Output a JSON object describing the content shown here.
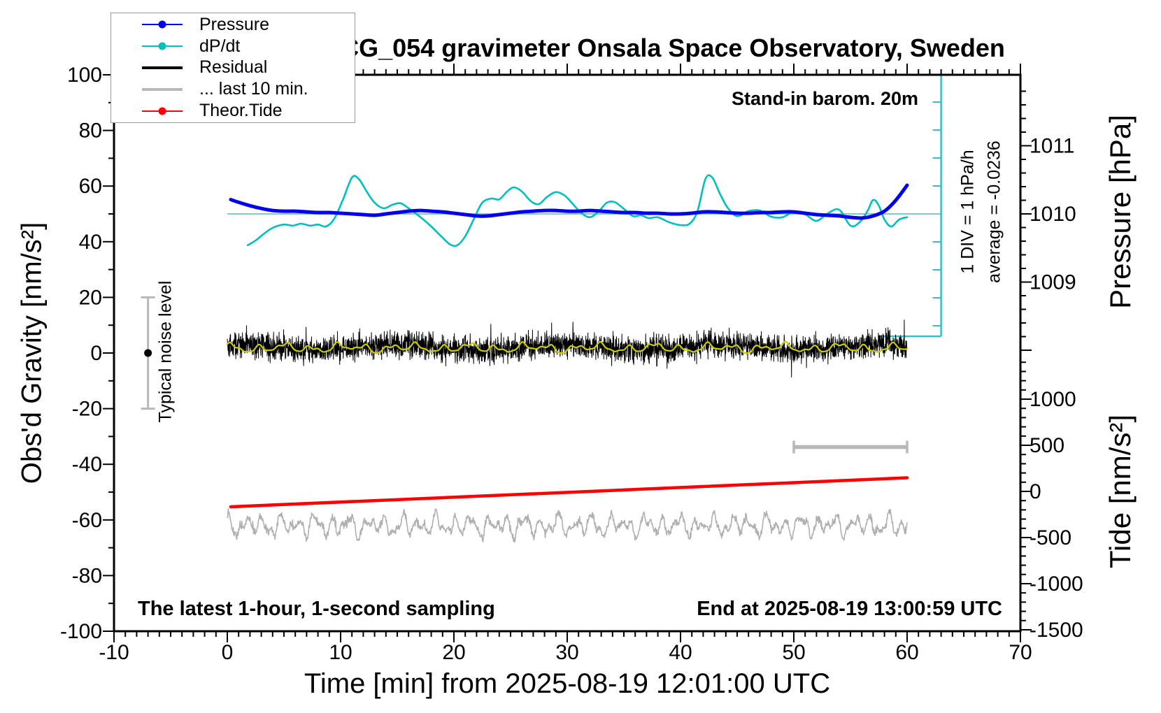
{
  "chart_data": {
    "type": "line",
    "title": "SCG_054 gravimeter Onsala Space Observatory, Sweden",
    "xlabel": "Time [min] from 2025-08-19 12:01:00 UTC",
    "x_axis": {
      "min": -10,
      "max": 70,
      "major": 10,
      "minor": 1
    },
    "y_left": {
      "label": "Obs'd Gravity [nm/s²]",
      "min": -100,
      "max": 100,
      "major": 20,
      "minor": 10
    },
    "y_right_pressure": {
      "label": "Pressure [hPa]",
      "ticks": [
        1011,
        1010,
        1009
      ],
      "minor_step": 0.2,
      "shown_range": [
        1008.0,
        1011.8
      ]
    },
    "y_right_tide": {
      "label": "Tide [nm/s²]",
      "ticks": [
        1000,
        500,
        0,
        -500,
        -1000,
        -1500
      ],
      "minor_step": 100,
      "shown_range": [
        -1500,
        1400
      ]
    },
    "axis_alignment": {
      "pressure_ref": 1010,
      "pressure_ref_g": 50,
      "g_per_hpa": 24.5,
      "g_per_hpa_rate": 10.05,
      "tide_zero_g": -49.75,
      "g_per_tide_unit": 0.03316
    },
    "annotations": {
      "barometer": "Stand-in barom. 20m",
      "div_scale": "1 DIV = 1 hPa/h",
      "average": "average = -0.0236",
      "noise_level": "Typical noise level",
      "sampling": "The latest 1-hour, 1-second sampling",
      "end_time": "End at 2025-08-19 13:00:59 UTC"
    },
    "legend": [
      {
        "label": "Pressure",
        "color": "#0000ee",
        "dot": true,
        "thick": false
      },
      {
        "label": "dP/dt",
        "color": "#00bfbf",
        "dot": true,
        "thick": false
      },
      {
        "label": "Residual",
        "color": "#000000",
        "dot": false,
        "thick": true
      },
      {
        "label": "... last 10 min.",
        "color": "#b8b8b8",
        "dot": false,
        "thick": true
      },
      {
        "label": "Theor.Tide",
        "color": "#ff0000",
        "dot": true,
        "thick": false
      }
    ],
    "colors": {
      "pressure": "#0000ee",
      "dpdt": "#00bfbf",
      "dpdt_zero_line": "#85c9c9",
      "div_bar": "#3cbcbc",
      "residual": "#000000",
      "residual_smooth": "#cccc00",
      "last10": "#b0b0b0",
      "tide": "#ff0000",
      "marker_gray": "#b8b8b8",
      "frame": "#000000"
    },
    "series": {
      "pressure_hpa": [
        [
          0.3,
          1010.21
        ],
        [
          1,
          1010.17
        ],
        [
          2,
          1010.12
        ],
        [
          3,
          1010.08
        ],
        [
          4,
          1010.05
        ],
        [
          5,
          1010.04
        ],
        [
          6,
          1010.04
        ],
        [
          7,
          1010.03
        ],
        [
          8,
          1010.02
        ],
        [
          9,
          1010.02
        ],
        [
          10,
          1010.01
        ],
        [
          11,
          1010.0
        ],
        [
          12,
          1009.99
        ],
        [
          13,
          1009.98
        ],
        [
          14,
          1010.0
        ],
        [
          15,
          1010.02
        ],
        [
          16,
          1010.04
        ],
        [
          17,
          1010.05
        ],
        [
          18,
          1010.04
        ],
        [
          19,
          1010.03
        ],
        [
          20,
          1010.01
        ],
        [
          21,
          1009.99
        ],
        [
          22,
          1009.97
        ],
        [
          23,
          1009.97
        ],
        [
          24,
          1009.99
        ],
        [
          25,
          1010.01
        ],
        [
          26,
          1010.03
        ],
        [
          27,
          1010.04
        ],
        [
          28,
          1010.05
        ],
        [
          29,
          1010.05
        ],
        [
          30,
          1010.04
        ],
        [
          31,
          1010.04
        ],
        [
          32,
          1010.05
        ],
        [
          33,
          1010.04
        ],
        [
          34,
          1010.03
        ],
        [
          35,
          1010.02
        ],
        [
          36,
          1010.02
        ],
        [
          37,
          1010.01
        ],
        [
          38,
          1010.01
        ],
        [
          39,
          1010.0
        ],
        [
          40,
          1010.0
        ],
        [
          41,
          1010.01
        ],
        [
          42,
          1010.03
        ],
        [
          43,
          1010.03
        ],
        [
          44,
          1010.02
        ],
        [
          45,
          1010.01
        ],
        [
          46,
          1010.01
        ],
        [
          47,
          1010.02
        ],
        [
          48,
          1010.02
        ],
        [
          49,
          1010.03
        ],
        [
          50,
          1010.03
        ],
        [
          51,
          1010.01
        ],
        [
          52,
          1009.99
        ],
        [
          53,
          1009.98
        ],
        [
          54,
          1009.97
        ],
        [
          55,
          1009.95
        ],
        [
          56,
          1009.94
        ],
        [
          57,
          1009.97
        ],
        [
          58,
          1010.04
        ],
        [
          59,
          1010.2
        ],
        [
          60,
          1010.42
        ]
      ],
      "dpdt_hpa_per_h": [
        [
          1.8,
          -1.12
        ],
        [
          2.5,
          -0.95
        ],
        [
          3.2,
          -0.72
        ],
        [
          4,
          -0.5
        ],
        [
          5,
          -0.38
        ],
        [
          5.8,
          -0.42
        ],
        [
          6.5,
          -0.35
        ],
        [
          7.3,
          -0.42
        ],
        [
          8,
          -0.38
        ],
        [
          8.7,
          -0.45
        ],
        [
          9.4,
          -0.2
        ],
        [
          10.2,
          0.5
        ],
        [
          11,
          1.3
        ],
        [
          11.6,
          1.25
        ],
        [
          12.3,
          0.8
        ],
        [
          13,
          0.4
        ],
        [
          13.8,
          0.2
        ],
        [
          14.6,
          0.33
        ],
        [
          15.3,
          0.38
        ],
        [
          16,
          0.2
        ],
        [
          17,
          -0.1
        ],
        [
          18,
          -0.45
        ],
        [
          19,
          -0.85
        ],
        [
          19.7,
          -1.1
        ],
        [
          20.3,
          -1.12
        ],
        [
          21,
          -0.8
        ],
        [
          21.8,
          -0.15
        ],
        [
          22.5,
          0.4
        ],
        [
          23.3,
          0.55
        ],
        [
          24,
          0.52
        ],
        [
          24.7,
          0.8
        ],
        [
          25.3,
          0.95
        ],
        [
          26,
          0.8
        ],
        [
          26.8,
          0.45
        ],
        [
          27.5,
          0.35
        ],
        [
          28.2,
          0.6
        ],
        [
          29,
          0.78
        ],
        [
          29.8,
          0.65
        ],
        [
          30.5,
          0.35
        ],
        [
          31.2,
          0.05
        ],
        [
          32,
          -0.12
        ],
        [
          32.8,
          0.1
        ],
        [
          33.5,
          0.4
        ],
        [
          34.2,
          0.42
        ],
        [
          35,
          0.18
        ],
        [
          35.8,
          -0.08
        ],
        [
          36.5,
          -0.05
        ],
        [
          37.2,
          -0.15
        ],
        [
          38,
          -0.12
        ],
        [
          39,
          -0.3
        ],
        [
          40,
          -0.4
        ],
        [
          40.8,
          -0.35
        ],
        [
          41.5,
          0.1
        ],
        [
          42.2,
          1.25
        ],
        [
          42.8,
          1.3
        ],
        [
          43.5,
          0.7
        ],
        [
          44.2,
          0.2
        ],
        [
          45,
          -0.08
        ],
        [
          46,
          0.1
        ],
        [
          47,
          0.12
        ],
        [
          48,
          -0.1
        ],
        [
          49,
          -0.12
        ],
        [
          50,
          0.08
        ],
        [
          51,
          -0.02
        ],
        [
          52,
          -0.25
        ],
        [
          53,
          0.02
        ],
        [
          54,
          0.15
        ],
        [
          55,
          -0.42
        ],
        [
          55.8,
          -0.3
        ],
        [
          56.5,
          0.1
        ],
        [
          57,
          0.5
        ],
        [
          57.5,
          0.3
        ],
        [
          58,
          -0.2
        ],
        [
          58.6,
          -0.45
        ],
        [
          59.3,
          -0.2
        ],
        [
          60,
          -0.12
        ]
      ],
      "theor_tide_nms2": [
        [
          0.3,
          -167
        ],
        [
          60,
          148
        ]
      ],
      "residual": {
        "procedural": true,
        "units": "nm/s2 gravity",
        "mean": 2.0,
        "harmonics": [
          [
            0.9,
            0.45,
            1.0
          ]
        ],
        "noise_sigma": 2.3,
        "spike_prob": 0.012,
        "spike_min": 2.0,
        "spike_max": 5.0,
        "n": 3600,
        "t0": 0,
        "t1": 60,
        "seed": 42
      },
      "residual_smooth": {
        "procedural": true,
        "mean": 1.8,
        "harmonics": [
          [
            1.05,
            2.7,
            0.4
          ],
          [
            0.65,
            1.15,
            2.1
          ],
          [
            0.45,
            4.6,
            1.2
          ],
          [
            0.3,
            7.3,
            0
          ]
        ],
        "noise_sigma": 0,
        "n": 600,
        "t0": 0,
        "t1": 60,
        "seed": 7
      },
      "last10_stretched": {
        "procedural": true,
        "mean": -62,
        "harmonics": [
          [
            2.2,
            4.1,
            1.2
          ],
          [
            1.7,
            6.9,
            0.4
          ],
          [
            1.2,
            2.35,
            2.2
          ],
          [
            0.6,
            11.3,
            0.8
          ]
        ],
        "noise_sigma": 0.7,
        "n": 1500,
        "t0": 0,
        "t1": 60,
        "seed": 13
      },
      "dpdt_zero_line": {
        "x_from": 0,
        "x_to": 63,
        "pressure_level": 1010
      },
      "noise_marker": {
        "x_min": -7,
        "lo_g": -20,
        "hi_g": 20,
        "dot_g": 0
      },
      "window_bar": {
        "x_from": 50,
        "x_to": 60,
        "y_g": -33.8
      },
      "div_bar": {
        "x_min": 63,
        "top_g": 100,
        "bottom_g": 6,
        "tick_step_rate": 1,
        "tick_k_min": -4,
        "tick_k_max": 4,
        "cap_x_from": 57.6
      }
    }
  }
}
